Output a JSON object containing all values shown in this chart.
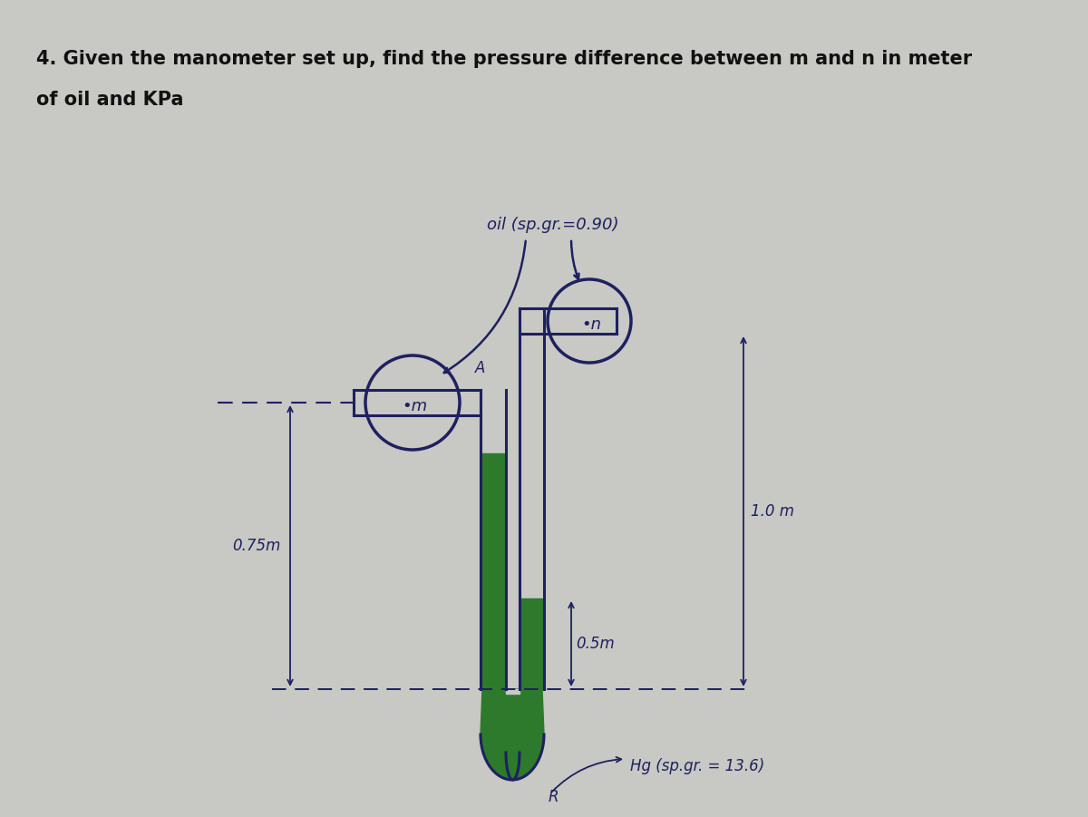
{
  "title_line1": "4. Given the manometer set up, find the pressure difference between m and n in meter",
  "title_line2": "of oil and KPa",
  "bg_color": "#c8c8c4",
  "line_color": "#1e2060",
  "oil_label": "oil (sp.gr.=0.90)",
  "mercury_label": "Hg (sp.gr. = 13.6)",
  "m_label": "•m",
  "n_label": "•n",
  "A_label": "A",
  "R_label": "R",
  "dim_075": "0.75m",
  "dim_05": "0.5m",
  "dim_10": "1.0 m",
  "green_fill": "#2d7a2d",
  "dark_green": "#1a5c1a"
}
